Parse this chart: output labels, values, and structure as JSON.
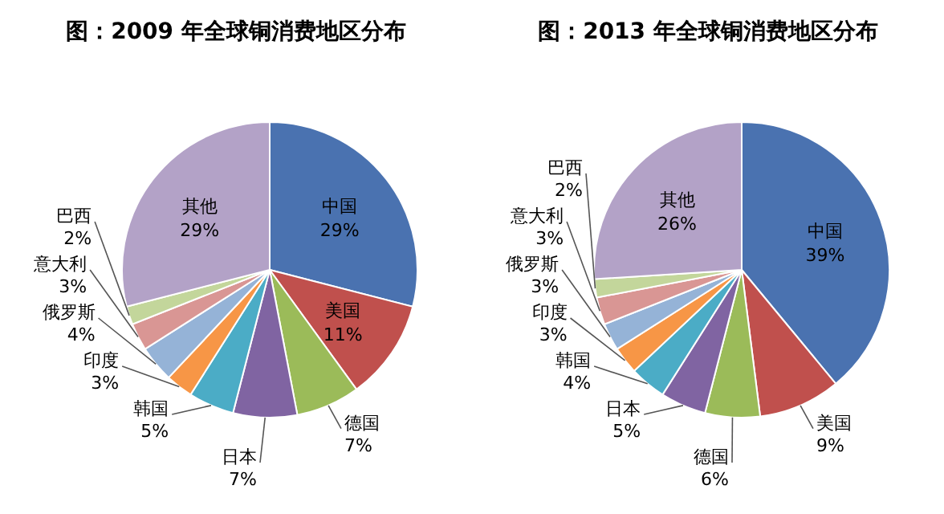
{
  "chart_data": [
    {
      "type": "pie",
      "title": "图：2009 年全球铜消费地区分布",
      "categories": [
        "中国",
        "美国",
        "德国",
        "日本",
        "韩国",
        "印度",
        "俄罗斯",
        "意大利",
        "巴西",
        "其他"
      ],
      "values": [
        29,
        11,
        7,
        7,
        5,
        3,
        4,
        3,
        2,
        29
      ],
      "value_labels": [
        "29%",
        "11%",
        "7%",
        "7%",
        "5%",
        "3%",
        "4%",
        "3%",
        "2%",
        "29%"
      ],
      "colors": [
        "#4a72b0",
        "#c0504d",
        "#9bbb59",
        "#8064a2",
        "#4bacc6",
        "#f79646",
        "#95b3d7",
        "#d99694",
        "#c3d69b",
        "#b3a2c7"
      ]
    },
    {
      "type": "pie",
      "title": "图：2013 年全球铜消费地区分布",
      "categories": [
        "中国",
        "美国",
        "德国",
        "日本",
        "韩国",
        "印度",
        "俄罗斯",
        "意大利",
        "巴西",
        "其他"
      ],
      "values": [
        39,
        9,
        6,
        5,
        4,
        3,
        3,
        3,
        2,
        26
      ],
      "value_labels": [
        "39%",
        "9%",
        "6%",
        "5%",
        "4%",
        "3%",
        "3%",
        "3%",
        "2%",
        "26%"
      ],
      "colors": [
        "#4a72b0",
        "#c0504d",
        "#9bbb59",
        "#8064a2",
        "#4bacc6",
        "#f79646",
        "#95b3d7",
        "#d99694",
        "#c3d69b",
        "#b3a2c7"
      ]
    }
  ]
}
